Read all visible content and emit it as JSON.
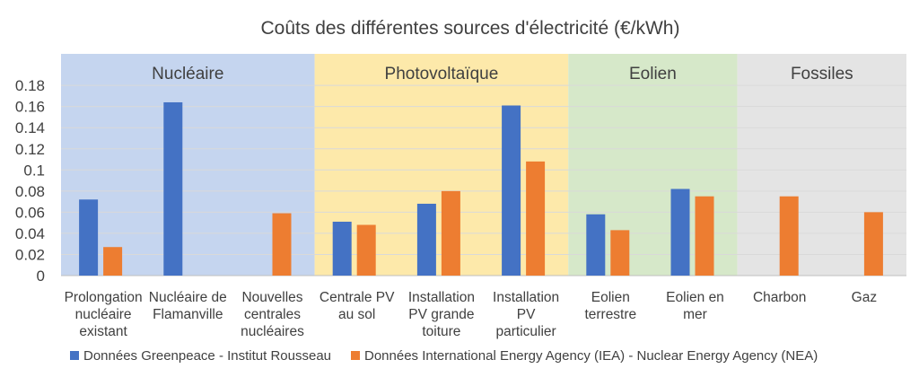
{
  "chart_data": {
    "type": "bar",
    "title": "Coûts des différentes sources d'électricité (€/kWh)",
    "xlabel": "",
    "ylabel": "",
    "ylim": [
      0,
      0.19
    ],
    "yticks": [
      "0",
      "0.02",
      "0.04",
      "0.06",
      "0.08",
      "0.1",
      "0.12",
      "0.14",
      "0.16",
      "0.18"
    ],
    "grid": true,
    "legend_position": "bottom",
    "categories": [
      [
        "Prolongation",
        "nucléaire",
        "existant"
      ],
      [
        "Nucléaire de",
        "Flamanville"
      ],
      [
        "Nouvelles",
        "centrales",
        "nucléaires"
      ],
      [
        "Centrale PV",
        "au sol"
      ],
      [
        "Installation",
        "PV grande",
        "toiture"
      ],
      [
        "Installation",
        "PV",
        "particulier"
      ],
      [
        "Eolien",
        "terrestre"
      ],
      [
        "Eolien en",
        "mer"
      ],
      [
        "Charbon"
      ],
      [
        "Gaz"
      ]
    ],
    "groups": [
      {
        "label": "Nucléaire",
        "categories": [
          0,
          1,
          2
        ],
        "color": "#c5d5ef"
      },
      {
        "label": "Photovoltaïque",
        "categories": [
          3,
          4,
          5
        ],
        "color": "#fde9aa"
      },
      {
        "label": "Eolien",
        "categories": [
          6,
          7
        ],
        "color": "#d6e8c9"
      },
      {
        "label": "Fossiles",
        "categories": [
          8,
          9
        ],
        "color": "#e4e4e4"
      }
    ],
    "series": [
      {
        "name": "Données Greenpeace - Institut Rousseau",
        "color": "#4472c4",
        "values": [
          0.072,
          0.164,
          null,
          0.051,
          0.068,
          0.161,
          0.058,
          0.082,
          null,
          null
        ]
      },
      {
        "name": "Données International Energy Agency (IEA) - Nuclear Energy Agency (NEA)",
        "color": "#ed7d31",
        "values": [
          0.027,
          null,
          0.059,
          0.048,
          0.08,
          0.108,
          0.043,
          0.075,
          0.075,
          0.06
        ]
      }
    ]
  }
}
